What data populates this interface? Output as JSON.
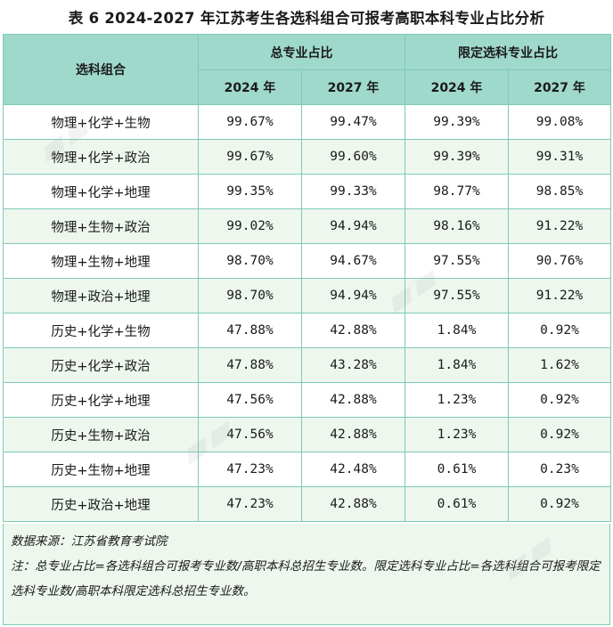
{
  "title": "表 6 2024-2027 年江苏考生各选科组合可报考高职本科专业占比分析",
  "headers": {
    "combo": "选科组合",
    "group_total": "总专业占比",
    "group_restricted": "限定选科专业占比",
    "years": [
      "2024 年",
      "2027 年",
      "2024 年",
      "2027 年"
    ]
  },
  "rows": [
    {
      "combo": "物理+化学+生物",
      "v": [
        "99.67%",
        "99.47%",
        "99.39%",
        "99.08%"
      ]
    },
    {
      "combo": "物理+化学+政治",
      "v": [
        "99.67%",
        "99.60%",
        "99.39%",
        "99.31%"
      ]
    },
    {
      "combo": "物理+化学+地理",
      "v": [
        "99.35%",
        "99.33%",
        "98.77%",
        "98.85%"
      ]
    },
    {
      "combo": "物理+生物+政治",
      "v": [
        "99.02%",
        "94.94%",
        "98.16%",
        "91.22%"
      ]
    },
    {
      "combo": "物理+生物+地理",
      "v": [
        "98.70%",
        "94.67%",
        "97.55%",
        "90.76%"
      ]
    },
    {
      "combo": "物理+政治+地理",
      "v": [
        "98.70%",
        "94.94%",
        "97.55%",
        "91.22%"
      ]
    },
    {
      "combo": "历史+化学+生物",
      "v": [
        "47.88%",
        "42.88%",
        "1.84%",
        "0.92%"
      ]
    },
    {
      "combo": "历史+化学+政治",
      "v": [
        "47.88%",
        "43.28%",
        "1.84%",
        "1.62%"
      ]
    },
    {
      "combo": "历史+化学+地理",
      "v": [
        "47.56%",
        "42.88%",
        "1.23%",
        "0.92%"
      ]
    },
    {
      "combo": "历史+生物+政治",
      "v": [
        "47.56%",
        "42.88%",
        "1.23%",
        "0.92%"
      ]
    },
    {
      "combo": "历史+生物+地理",
      "v": [
        "47.23%",
        "42.48%",
        "0.61%",
        "0.23%"
      ]
    },
    {
      "combo": "历史+政治+地理",
      "v": [
        "47.23%",
        "42.88%",
        "0.61%",
        "0.92%"
      ]
    }
  ],
  "notes": {
    "source": "数据来源：江苏省教育考试院",
    "note": "注：总专业占比=各选科组合可报考专业数/高职本科总招生专业数。限定选科专业占比=各选科组合可报考限定选科专业数/高职本科限定选科总招生专业数。"
  }
}
